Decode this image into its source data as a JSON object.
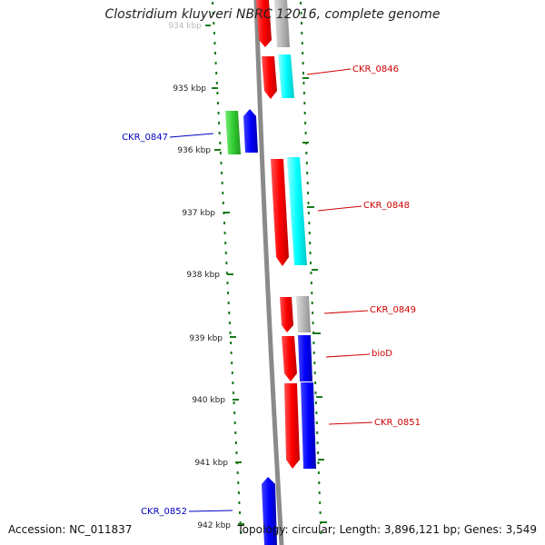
{
  "title": "Clostridium kluyveri NBRC 12016, complete genome",
  "footer": {
    "accession": "Accession: NC_011837",
    "topology": "Topology: circular; Length: 3,896,121 bp; Genes: 3,549"
  },
  "ticks": [
    {
      "label": "934 kbp"
    },
    {
      "label": "935 kbp"
    },
    {
      "label": "936 kbp"
    },
    {
      "label": "937 kbp"
    },
    {
      "label": "938 kbp"
    },
    {
      "label": "939 kbp"
    },
    {
      "label": "940 kbp"
    },
    {
      "label": "941 kbp"
    },
    {
      "label": "942 kbp"
    }
  ],
  "genes": [
    {
      "id": "CKR_0846",
      "color": "#d00000"
    },
    {
      "id": "CKR_0847",
      "color": "#0000c0"
    },
    {
      "id": "CKR_0848",
      "color": "#d00000"
    },
    {
      "id": "CKR_0849",
      "color": "#d00000"
    },
    {
      "id": "bioD",
      "color": "#d00000"
    },
    {
      "id": "CKR_0851",
      "color": "#d00000"
    },
    {
      "id": "CKR_0852",
      "color": "#0000c0"
    }
  ],
  "colors": {
    "forward": "#ff0000",
    "reverse": "#0000ff",
    "cyan": "#00ffff",
    "gray": "#b0b0b0",
    "green": "#33cc33",
    "track": "#1a7a1a",
    "backbone": "#8a8a8a"
  }
}
